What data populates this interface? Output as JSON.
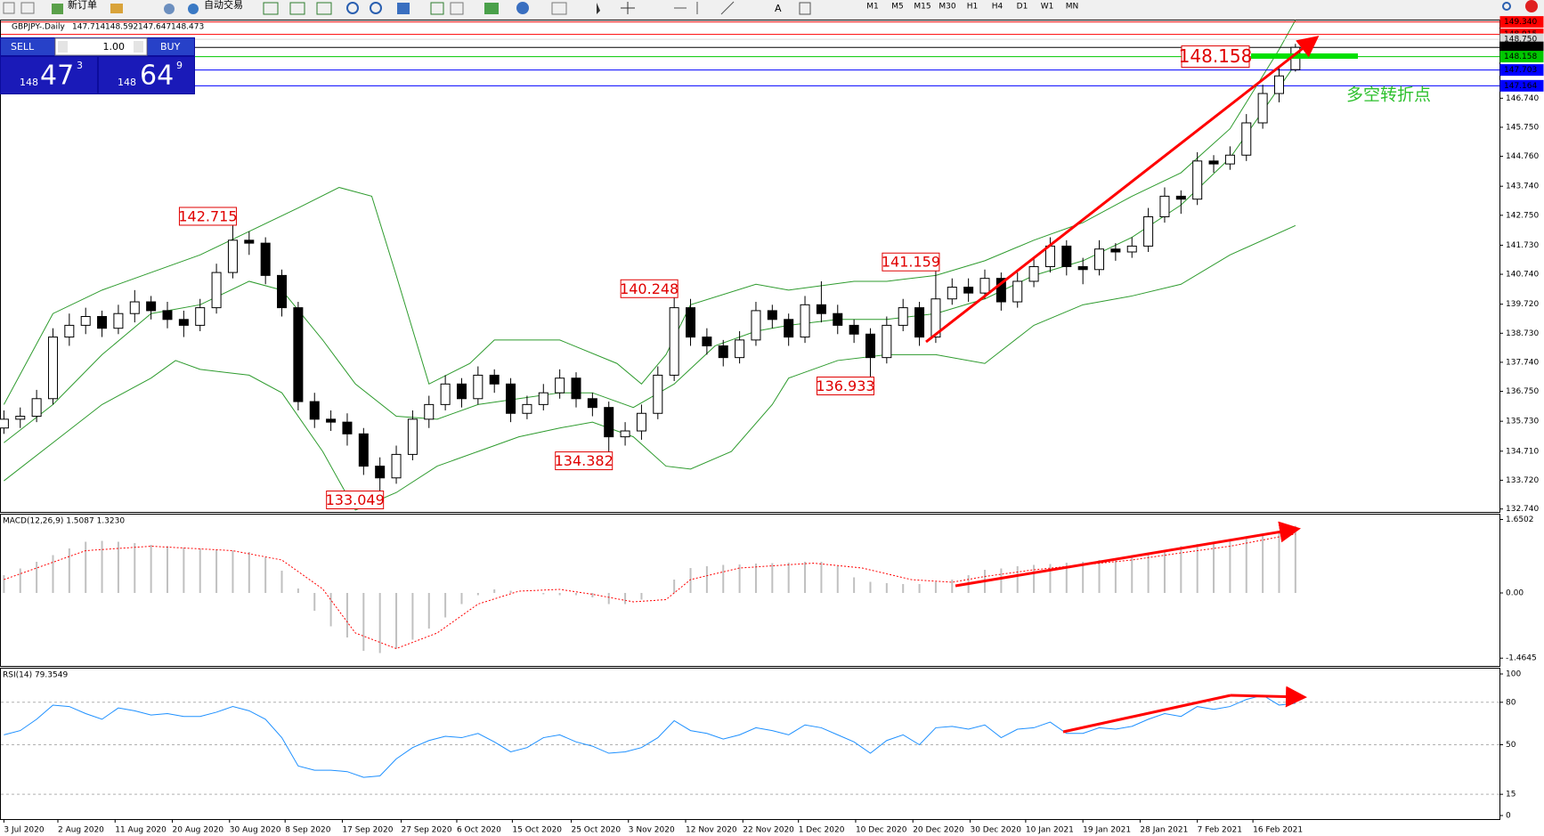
{
  "ui": {
    "toolbar": {
      "new_order": "新订单",
      "auto_trade": "自动交易"
    },
    "timeframes": [
      "M1",
      "M5",
      "M15",
      "M30",
      "H1",
      "H4",
      "D1",
      "W1",
      "MN"
    ],
    "trade": {
      "sell": "SELL",
      "buy": "BUY",
      "lots": "1.00",
      "bid": {
        "big": "148",
        "pips": "47",
        "frac": "3"
      },
      "ask": {
        "big": "148",
        "pips": "64",
        "frac": "9"
      }
    }
  },
  "chart_data": [
    {
      "type": "candlestick",
      "title": "GBPJPY-.Daily",
      "note": "多空转折点",
      "ylim": [
        132.67,
        149.42
      ],
      "yticks": [
        {
          "value": 132.74,
          "label": "132.740"
        },
        {
          "value": 133.72,
          "label": "133.720"
        },
        {
          "value": 134.71,
          "label": "134.710"
        },
        {
          "value": 135.73,
          "label": "135.730"
        },
        {
          "value": 136.75,
          "label": "136.750"
        },
        {
          "value": 137.74,
          "label": "137.740"
        },
        {
          "value": 138.73,
          "label": "138.730"
        },
        {
          "value": 139.72,
          "label": "139.720"
        },
        {
          "value": 140.74,
          "label": "140.740"
        },
        {
          "value": 141.73,
          "label": "141.730"
        },
        {
          "value": 142.75,
          "label": "142.750"
        },
        {
          "value": 143.74,
          "label": "143.740"
        },
        {
          "value": 144.76,
          "label": "144.760"
        },
        {
          "value": 145.75,
          "label": "145.750"
        },
        {
          "value": 146.74,
          "label": "146.740"
        }
      ],
      "ohlc": [
        [
          135.5,
          136.1,
          135.3,
          135.8
        ],
        [
          135.8,
          136.2,
          135.5,
          135.9
        ],
        [
          135.9,
          136.8,
          135.7,
          136.5
        ],
        [
          136.5,
          138.9,
          136.3,
          138.6
        ],
        [
          138.6,
          139.4,
          138.3,
          139.0
        ],
        [
          139.0,
          139.6,
          138.7,
          139.3
        ],
        [
          139.3,
          139.5,
          138.6,
          138.9
        ],
        [
          138.9,
          139.7,
          138.7,
          139.4
        ],
        [
          139.4,
          140.2,
          139.1,
          139.8
        ],
        [
          139.8,
          140.0,
          139.2,
          139.5
        ],
        [
          139.5,
          139.8,
          138.9,
          139.2
        ],
        [
          139.2,
          139.5,
          138.6,
          139.0
        ],
        [
          139.0,
          139.9,
          138.8,
          139.6
        ],
        [
          139.6,
          141.1,
          139.4,
          140.8
        ],
        [
          140.8,
          142.715,
          140.6,
          141.9
        ],
        [
          141.9,
          142.2,
          141.4,
          141.8
        ],
        [
          141.8,
          142.0,
          140.4,
          140.7
        ],
        [
          140.7,
          140.9,
          139.3,
          139.6
        ],
        [
          139.6,
          139.8,
          136.1,
          136.4
        ],
        [
          136.4,
          136.7,
          135.5,
          135.8
        ],
        [
          135.8,
          136.1,
          135.4,
          135.7
        ],
        [
          135.7,
          136.0,
          134.9,
          135.3
        ],
        [
          135.3,
          135.5,
          133.9,
          134.2
        ],
        [
          134.2,
          134.5,
          133.049,
          133.8
        ],
        [
          133.8,
          134.9,
          133.6,
          134.6
        ],
        [
          134.6,
          136.1,
          134.4,
          135.8
        ],
        [
          135.8,
          136.6,
          135.5,
          136.3
        ],
        [
          136.3,
          137.3,
          136.1,
          137.0
        ],
        [
          137.0,
          137.2,
          136.2,
          136.5
        ],
        [
          136.5,
          137.6,
          136.3,
          137.3
        ],
        [
          137.3,
          137.5,
          136.7,
          137.0
        ],
        [
          137.0,
          137.2,
          135.7,
          136.0
        ],
        [
          136.0,
          136.6,
          135.8,
          136.3
        ],
        [
          136.3,
          137.0,
          136.1,
          136.7
        ],
        [
          136.7,
          137.5,
          136.5,
          137.2
        ],
        [
          137.2,
          137.4,
          136.2,
          136.5
        ],
        [
          136.5,
          136.7,
          135.9,
          136.2
        ],
        [
          136.2,
          136.4,
          134.382,
          135.2
        ],
        [
          135.2,
          135.7,
          134.9,
          135.4
        ],
        [
          135.4,
          136.3,
          135.1,
          136.0
        ],
        [
          136.0,
          137.6,
          135.8,
          137.3
        ],
        [
          137.3,
          140.248,
          137.1,
          139.6
        ],
        [
          139.6,
          139.9,
          138.3,
          138.6
        ],
        [
          138.6,
          138.9,
          138.0,
          138.3
        ],
        [
          138.3,
          138.5,
          137.6,
          137.9
        ],
        [
          137.9,
          138.8,
          137.7,
          138.5
        ],
        [
          138.5,
          139.8,
          138.3,
          139.5
        ],
        [
          139.5,
          139.7,
          138.9,
          139.2
        ],
        [
          139.2,
          139.4,
          138.3,
          138.6
        ],
        [
          138.6,
          140.0,
          138.4,
          139.7
        ],
        [
          139.7,
          140.5,
          139.1,
          139.4
        ],
        [
          139.4,
          139.7,
          138.7,
          139.0
        ],
        [
          139.0,
          139.2,
          138.4,
          138.7
        ],
        [
          138.7,
          138.9,
          136.933,
          137.9
        ],
        [
          137.9,
          139.3,
          137.7,
          139.0
        ],
        [
          139.0,
          139.9,
          138.8,
          139.6
        ],
        [
          139.6,
          139.8,
          138.3,
          138.6
        ],
        [
          138.6,
          141.159,
          138.4,
          139.9
        ],
        [
          139.9,
          140.6,
          139.7,
          140.3
        ],
        [
          140.3,
          140.6,
          139.8,
          140.1
        ],
        [
          140.1,
          140.9,
          139.9,
          140.6
        ],
        [
          140.6,
          140.8,
          139.5,
          139.8
        ],
        [
          139.8,
          140.8,
          139.6,
          140.5
        ],
        [
          140.5,
          141.3,
          140.3,
          141.0
        ],
        [
          141.0,
          142.0,
          140.8,
          141.7
        ],
        [
          141.7,
          141.9,
          140.7,
          141.0
        ],
        [
          141.0,
          141.3,
          140.4,
          140.9
        ],
        [
          140.9,
          141.9,
          140.7,
          141.6
        ],
        [
          141.6,
          141.8,
          141.2,
          141.5
        ],
        [
          141.5,
          142.0,
          141.3,
          141.7
        ],
        [
          141.7,
          143.0,
          141.5,
          142.7
        ],
        [
          142.7,
          143.7,
          142.5,
          143.4
        ],
        [
          143.4,
          143.6,
          142.8,
          143.3
        ],
        [
          143.3,
          144.9,
          143.1,
          144.6
        ],
        [
          144.6,
          144.8,
          144.2,
          144.5
        ],
        [
          144.5,
          145.1,
          144.3,
          144.8
        ],
        [
          144.8,
          146.2,
          144.6,
          145.9
        ],
        [
          145.9,
          147.2,
          145.7,
          146.9
        ],
        [
          146.9,
          147.8,
          146.6,
          147.5
        ],
        [
          147.714,
          148.592,
          147.647,
          148.473
        ]
      ],
      "series": [
        {
          "color": "#2e9b2e",
          "x": [
            0,
            3,
            6,
            12,
            15,
            18,
            20.5,
            22.5,
            24,
            26,
            28.5,
            30,
            34,
            37.5,
            39,
            40.5,
            42,
            46,
            48,
            52,
            54,
            57,
            60,
            63,
            66,
            69,
            72,
            75,
            78,
            79
          ],
          "values": [
            136.3,
            139.4,
            140.2,
            141.4,
            142.2,
            143.0,
            143.7,
            143.4,
            140.7,
            137.0,
            137.7,
            138.5,
            138.5,
            137.7,
            137.0,
            138.0,
            139.7,
            140.4,
            140.2,
            140.5,
            140.5,
            140.7,
            141.2,
            141.9,
            142.5,
            143.4,
            144.2,
            145.7,
            148.4,
            149.4
          ]
        },
        {
          "color": "#2e9b2e",
          "x": [
            0,
            3,
            6,
            9,
            12,
            15,
            17,
            19.5,
            21.5,
            24,
            26.5,
            29,
            31.5,
            34,
            36,
            38.5,
            41,
            43.5,
            46,
            48,
            51,
            54,
            57,
            60,
            63,
            66,
            69,
            72,
            75,
            78,
            79
          ],
          "values": [
            135.0,
            136.3,
            138.0,
            139.4,
            139.7,
            140.5,
            140.2,
            138.5,
            137.0,
            135.9,
            135.8,
            136.3,
            136.5,
            136.7,
            136.7,
            136.2,
            137.0,
            138.3,
            138.8,
            139.0,
            139.2,
            139.2,
            139.4,
            139.9,
            140.7,
            141.2,
            142.0,
            143.1,
            144.7,
            147.1,
            147.9
          ]
        },
        {
          "color": "#2e9b2e",
          "x": [
            0,
            3,
            6,
            9,
            10.5,
            12,
            15,
            17,
            19.5,
            21.5,
            24,
            26.5,
            29,
            31.5,
            34,
            36,
            38.5,
            40.5,
            42,
            44.5,
            47,
            48,
            51,
            54,
            57,
            60,
            63,
            66,
            69,
            72,
            75,
            79
          ],
          "values": [
            133.7,
            135.0,
            136.3,
            137.2,
            137.8,
            137.5,
            137.3,
            136.7,
            134.7,
            132.7,
            133.3,
            134.2,
            134.7,
            135.2,
            135.5,
            135.7,
            135.2,
            134.2,
            134.1,
            134.7,
            136.3,
            137.2,
            137.8,
            138.0,
            138.0,
            137.7,
            139.0,
            139.7,
            140.0,
            140.4,
            141.4,
            142.4
          ]
        }
      ],
      "levels": [
        {
          "value": 149.34,
          "label": "149.340",
          "color": "#ff0000"
        },
        {
          "value": 148.915,
          "color": "#ff0000"
        },
        {
          "value": 148.75,
          "label": "148.750",
          "color": "#d8d8d8"
        },
        {
          "value": 148.473,
          "color": "#000000"
        },
        {
          "value": 148.158,
          "color": "#00c800"
        },
        {
          "value": 147.703,
          "color": "#0000ff"
        },
        {
          "value": 147.164,
          "color": "#0000ff"
        }
      ],
      "annotations": [
        {
          "x": 14,
          "value": 142.715
        },
        {
          "x": 41,
          "value": 140.248
        },
        {
          "x": 57,
          "value": 141.159
        },
        {
          "x": 53,
          "value": 136.933
        },
        {
          "x": 37,
          "value": 134.382
        },
        {
          "x": 23,
          "value": 133.049
        }
      ]
    },
    {
      "type": "macd",
      "title": "MACD(12,26,9) 1.5087 1.3230",
      "ylim": [
        -1.62,
        1.78
      ],
      "yticks": [
        1.6502,
        {
          "value": 0,
          "label": "0.00"
        },
        -1.4645
      ],
      "histogram": {
        "color": "#c0c0c0",
        "values": [
          0.4,
          0.55,
          0.7,
          0.85,
          1.0,
          1.15,
          1.17,
          1.15,
          1.12,
          1.08,
          1.05,
          1.02,
          1.0,
          0.97,
          0.95,
          0.92,
          0.8,
          0.5,
          0.1,
          -0.4,
          -0.75,
          -1.0,
          -1.3,
          -1.35,
          -1.25,
          -1.05,
          -0.8,
          -0.55,
          -0.25,
          -0.05,
          0.08,
          0.05,
          0.0,
          -0.03,
          -0.05,
          -0.05,
          -0.1,
          -0.25,
          -0.25,
          -0.15,
          0.0,
          0.3,
          0.56,
          0.6,
          0.63,
          0.64,
          0.66,
          0.67,
          0.68,
          0.7,
          0.7,
          0.6,
          0.35,
          0.25,
          0.22,
          0.2,
          0.2,
          0.25,
          0.3,
          0.4,
          0.52,
          0.55,
          0.6,
          0.63,
          0.65,
          0.68,
          0.7,
          0.74,
          0.78,
          0.85,
          0.9,
          0.95,
          1.05,
          1.1,
          1.15,
          1.2,
          1.26,
          1.32,
          1.4,
          1.5087
        ]
      },
      "signal": {
        "color": "#ff0000",
        "x": [
          0,
          5,
          9,
          14,
          17,
          19.5,
          21.5,
          24,
          26.5,
          29,
          31.5,
          34,
          36,
          38.5,
          40.5,
          42,
          45,
          49.5,
          52.5,
          55.5,
          58,
          60,
          63,
          66,
          69,
          72,
          75,
          78,
          79
        ],
        "values": [
          0.3,
          0.95,
          1.05,
          0.95,
          0.74,
          0.09,
          -0.9,
          -1.25,
          -0.9,
          -0.25,
          0.04,
          0.08,
          -0.03,
          -0.2,
          -0.15,
          0.3,
          0.56,
          0.67,
          0.56,
          0.3,
          0.24,
          0.37,
          0.52,
          0.63,
          0.74,
          0.9,
          1.05,
          1.26,
          1.323
        ]
      }
    },
    {
      "type": "line",
      "title": "RSI(14) 79.3549",
      "ylim": [
        0,
        100
      ],
      "yticks": [
        100,
        80,
        50,
        15,
        0
      ],
      "grid": "dashed",
      "color": "#1e90ff",
      "values": [
        57,
        60,
        68,
        78,
        77,
        72,
        68,
        76,
        74,
        71,
        72,
        70,
        70,
        73,
        77,
        74,
        68,
        55,
        35,
        32,
        32,
        31,
        27,
        28,
        40,
        48,
        53,
        56,
        55,
        58,
        52,
        45,
        48,
        55,
        57,
        52,
        49,
        44,
        45,
        48,
        55,
        67,
        60,
        58,
        54,
        57,
        62,
        60,
        57,
        64,
        62,
        57,
        52,
        44,
        53,
        57,
        50,
        62,
        63,
        61,
        64,
        55,
        61,
        62,
        66,
        58,
        58,
        62,
        61,
        63,
        68,
        72,
        70,
        77,
        75,
        77,
        82,
        85,
        78,
        79.3549
      ],
      "xticks": [
        {
          "value": 0,
          "label": "3 Jul 2020"
        },
        {
          "value": 3.3,
          "label": "2 Aug 2020"
        },
        {
          "value": 6.8,
          "label": "11 Aug 2020"
        },
        {
          "value": 10.3,
          "label": "20 Aug 2020"
        },
        {
          "value": 13.8,
          "label": "30 Aug 2020"
        },
        {
          "value": 17.2,
          "label": "8 Sep 2020"
        },
        {
          "value": 20.7,
          "label": "17 Sep 2020"
        },
        {
          "value": 24.3,
          "label": "27 Sep 2020"
        },
        {
          "value": 27.7,
          "label": "6 Oct 2020"
        },
        {
          "value": 31.1,
          "label": "15 Oct 2020"
        },
        {
          "value": 34.7,
          "label": "25 Oct 2020"
        },
        {
          "value": 38.2,
          "label": "3 Nov 2020"
        },
        {
          "value": 41.7,
          "label": "12 Nov 2020"
        },
        {
          "value": 45.2,
          "label": "22 Nov 2020"
        },
        {
          "value": 48.6,
          "label": "1 Dec 2020"
        },
        {
          "value": 52.1,
          "label": "10 Dec 2020"
        },
        {
          "value": 55.6,
          "label": "20 Dec 2020"
        },
        {
          "value": 59.1,
          "label": "30 Dec 2020"
        },
        {
          "value": 62.5,
          "label": "10 Jan 2021"
        },
        {
          "value": 66.0,
          "label": "19 Jan 2021"
        },
        {
          "value": 69.5,
          "label": "28 Jan 2021"
        },
        {
          "value": 73.0,
          "label": "7 Feb 2021"
        },
        {
          "value": 76.4,
          "label": "16 Feb 2021"
        }
      ]
    }
  ]
}
